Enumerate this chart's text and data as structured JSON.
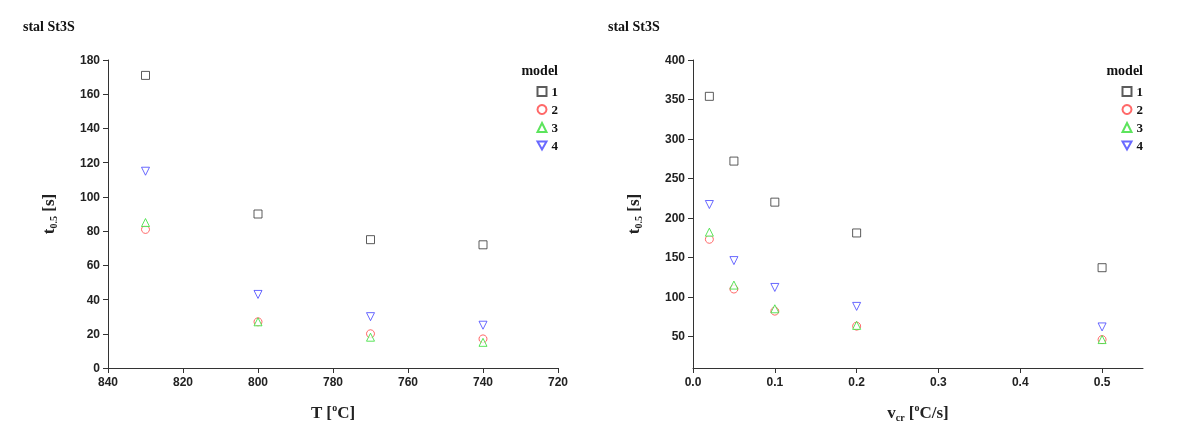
{
  "chart_data": [
    {
      "type": "scatter",
      "title": "stal St3S",
      "xlabel": "T [$^{o}$C]",
      "ylabel": "t$_{0.5}$ [s]",
      "legend_title": "model",
      "legend": "top right",
      "grid": false,
      "x": [
        830,
        800,
        770,
        740
      ],
      "xlim": [
        840,
        720
      ],
      "xticks": [
        840,
        820,
        800,
        780,
        760,
        740,
        720
      ],
      "ylim": [
        0,
        180
      ],
      "yticks": [
        0,
        20,
        40,
        60,
        80,
        100,
        120,
        140,
        160,
        180
      ],
      "series": [
        {
          "name": "1",
          "color": "#333333",
          "marker": "square",
          "values": [
            171,
            90,
            75,
            72
          ]
        },
        {
          "name": "2",
          "color": "#ff4444",
          "marker": "circle",
          "values": [
            81,
            27,
            20,
            17
          ]
        },
        {
          "name": "3",
          "color": "#33dd33",
          "marker": "triangle",
          "values": [
            85,
            27,
            18,
            15
          ]
        },
        {
          "name": "4",
          "color": "#4444ff",
          "marker": "triangle-down",
          "values": [
            115,
            43,
            30,
            25
          ]
        }
      ]
    },
    {
      "type": "scatter",
      "title": "stal St3S",
      "xlabel": "v$_{cr}$ [$^{o}$C/s]",
      "ylabel": "t$_{0.5}$ [s]",
      "legend_title": "model",
      "legend": "top right",
      "grid": false,
      "x": [
        0.02,
        0.05,
        0.1,
        0.2,
        0.5
      ],
      "xlim": [
        0,
        0.55
      ],
      "xticks": [
        {
          "value": 0,
          "label": "0.0"
        },
        0.1,
        0.2,
        0.3,
        0.4,
        0.5
      ],
      "ylim": [
        10,
        400
      ],
      "yticks": [
        50,
        100,
        150,
        200,
        250,
        300,
        350,
        400
      ],
      "series": [
        {
          "name": "1",
          "color": "#333333",
          "marker": "square",
          "values": [
            354,
            272,
            220,
            181,
            137
          ]
        },
        {
          "name": "2",
          "color": "#ff4444",
          "marker": "circle",
          "values": [
            173,
            110,
            82,
            63,
            46
          ]
        },
        {
          "name": "3",
          "color": "#33dd33",
          "marker": "triangle",
          "values": [
            182,
            115,
            85,
            64,
            46
          ]
        },
        {
          "name": "4",
          "color": "#4444ff",
          "marker": "triangle-down",
          "values": [
            217,
            146,
            112,
            88,
            62
          ]
        }
      ]
    }
  ]
}
